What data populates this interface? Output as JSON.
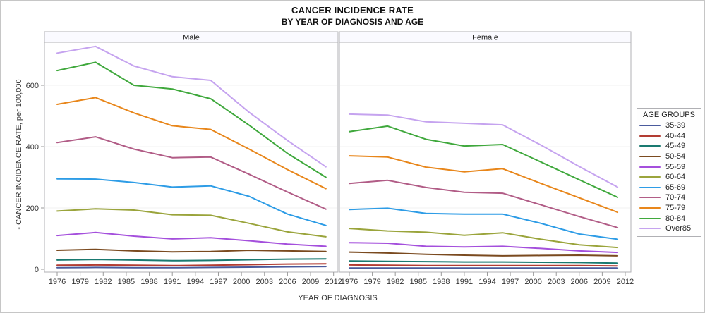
{
  "title": {
    "line1": "CANCER INCIDENCE RATE",
    "line2": "BY YEAR OF DIAGNOSIS AND AGE"
  },
  "axes": {
    "x_label": "YEAR OF DIAGNOSIS",
    "y_label": "- CANCER INCIDENCE RATE, per 100,000",
    "x_tick_labels": [
      1976,
      1979,
      1982,
      1985,
      1988,
      1991,
      1994,
      1997,
      2000,
      2003,
      2006,
      2009,
      2012
    ],
    "y_tick_labels": [
      0,
      200,
      400,
      600
    ]
  },
  "legend": {
    "title": "AGE GROUPS"
  },
  "chart_data": {
    "type": "line",
    "title": "CANCER INCIDENCE RATE",
    "subtitle": "BY YEAR OF DIAGNOSIS AND AGE",
    "xlabel": "YEAR OF DIAGNOSIS",
    "ylabel": "- CANCER INCIDENCE RATE, per 100,000",
    "x": [
      1976,
      1981,
      1986,
      1991,
      1996,
      2001,
      2006,
      2011
    ],
    "xlim": [
      1974,
      2013
    ],
    "ylim": [
      0,
      750
    ],
    "grid": "horizontal-major-y at 200/400/600, light gray",
    "legend_position": "right",
    "age_groups": [
      "35-39",
      "40-44",
      "45-49",
      "50-54",
      "55-59",
      "60-64",
      "65-69",
      "70-74",
      "75-79",
      "80-84",
      "Over85"
    ],
    "colors": {
      "35-39": "#4a5a9c",
      "40-44": "#b23c32",
      "45-49": "#197970",
      "50-54": "#7a4a1f",
      "55-59": "#a44fdc",
      "60-64": "#9aa43b",
      "65-69": "#2d9ce6",
      "70-74": "#b15c86",
      "75-79": "#e8861a",
      "80-84": "#3fa83c",
      "Over85": "#c5a3ef"
    },
    "panels": [
      {
        "label": "Male",
        "series": [
          {
            "name": "35-39",
            "values": [
              5,
              6,
              5,
              5,
              6,
              7,
              8,
              9
            ]
          },
          {
            "name": "40-44",
            "values": [
              13,
              14,
              13,
              12,
              13,
              15,
              17,
              18
            ]
          },
          {
            "name": "45-49",
            "values": [
              30,
              32,
              30,
              28,
              29,
              31,
              33,
              34
            ]
          },
          {
            "name": "50-54",
            "values": [
              62,
              65,
              60,
              57,
              58,
              62,
              60,
              58
            ]
          },
          {
            "name": "55-59",
            "values": [
              110,
              120,
              108,
              99,
              103,
              93,
              82,
              75
            ]
          },
          {
            "name": "60-64",
            "values": [
              190,
              197,
              193,
              178,
              176,
              150,
              122,
              106
            ]
          },
          {
            "name": "65-69",
            "values": [
              295,
              294,
              283,
              268,
              272,
              238,
              180,
              143
            ]
          },
          {
            "name": "70-74",
            "values": [
              413,
              432,
              392,
              364,
              366,
              310,
              252,
              196
            ]
          },
          {
            "name": "75-79",
            "values": [
              538,
              560,
              510,
              468,
              456,
              392,
              325,
              263
            ]
          },
          {
            "name": "80-84",
            "values": [
              648,
              675,
              600,
              588,
              556,
              470,
              378,
              300
            ]
          },
          {
            "name": "Over85",
            "values": [
              705,
              727,
              663,
              628,
              616,
              512,
              420,
              334
            ]
          }
        ]
      },
      {
        "label": "Female",
        "series": [
          {
            "name": "35-39",
            "values": [
              4,
              4,
              4,
              4,
              4,
              4,
              4,
              4
            ]
          },
          {
            "name": "40-44",
            "values": [
              14,
              13,
              12,
              12,
              12,
              12,
              12,
              11
            ]
          },
          {
            "name": "45-49",
            "values": [
              27,
              26,
              25,
              24,
              24,
              23,
              22,
              20
            ]
          },
          {
            "name": "50-54",
            "values": [
              56,
              53,
              49,
              46,
              44,
              45,
              46,
              44
            ]
          },
          {
            "name": "55-59",
            "values": [
              87,
              85,
              75,
              73,
              75,
              68,
              60,
              55
            ]
          },
          {
            "name": "60-64",
            "values": [
              133,
              125,
              121,
              111,
              119,
              98,
              80,
              71
            ]
          },
          {
            "name": "65-69",
            "values": [
              195,
              199,
              182,
              180,
              180,
              150,
              115,
              98
            ]
          },
          {
            "name": "70-74",
            "values": [
              280,
              290,
              267,
              251,
              248,
              210,
              172,
              136
            ]
          },
          {
            "name": "75-79",
            "values": [
              370,
              366,
              333,
              318,
              328,
              280,
              233,
              186
            ]
          },
          {
            "name": "80-84",
            "values": [
              449,
              467,
              424,
              402,
              407,
              350,
              292,
              235
            ]
          },
          {
            "name": "Over85",
            "values": [
              506,
              503,
              481,
              476,
              471,
              405,
              335,
              268
            ]
          }
        ]
      }
    ]
  }
}
